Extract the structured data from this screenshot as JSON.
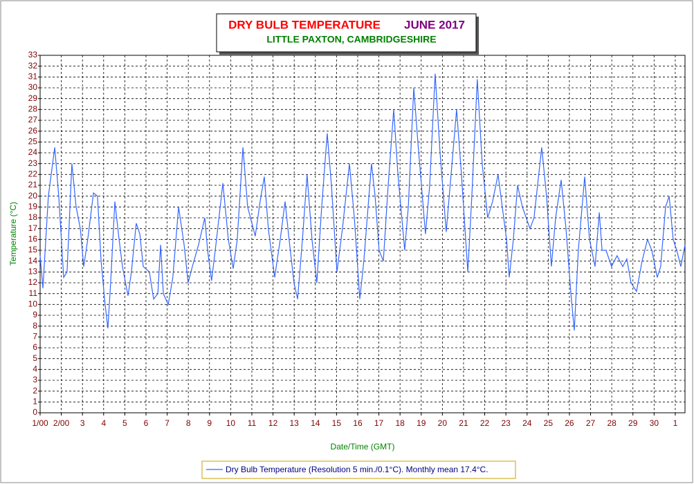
{
  "chart_data": {
    "type": "line",
    "title": "DRY BULB TEMPERATURE",
    "title_period": "JUNE 2017",
    "subtitle": "LITTLE PAXTON, CAMBRIDGESHIRE",
    "y_label": "Temperature (°C)",
    "x_label": "Date/Time (GMT)",
    "grid": true,
    "xlim": [
      0,
      30.46
    ],
    "ylim": [
      0,
      33
    ],
    "yticks": [
      0,
      1,
      2,
      3,
      4,
      5,
      6,
      7,
      8,
      9,
      10,
      11,
      12,
      13,
      14,
      15,
      16,
      17,
      18,
      19,
      20,
      21,
      22,
      23,
      24,
      25,
      26,
      27,
      28,
      29,
      30,
      31,
      32,
      33
    ],
    "xticks": [
      {
        "value": 0,
        "label": "1/00"
      },
      {
        "value": 1,
        "label": "2/00"
      },
      {
        "value": 2,
        "label": "3"
      },
      {
        "value": 3,
        "label": "4"
      },
      {
        "value": 4,
        "label": "5"
      },
      {
        "value": 5,
        "label": "6"
      },
      {
        "value": 6,
        "label": "7"
      },
      {
        "value": 7,
        "label": "8"
      },
      {
        "value": 8,
        "label": "9"
      },
      {
        "value": 9,
        "label": "10"
      },
      {
        "value": 10,
        "label": "11"
      },
      {
        "value": 11,
        "label": "12"
      },
      {
        "value": 12,
        "label": "13"
      },
      {
        "value": 13,
        "label": "14"
      },
      {
        "value": 14,
        "label": "15"
      },
      {
        "value": 15,
        "label": "16"
      },
      {
        "value": 16,
        "label": "17"
      },
      {
        "value": 17,
        "label": "18"
      },
      {
        "value": 18,
        "label": "19"
      },
      {
        "value": 19,
        "label": "20"
      },
      {
        "value": 20,
        "label": "21"
      },
      {
        "value": 21,
        "label": "22"
      },
      {
        "value": 22,
        "label": "23"
      },
      {
        "value": 23,
        "label": "24"
      },
      {
        "value": 24,
        "label": "25"
      },
      {
        "value": 25,
        "label": "26"
      },
      {
        "value": 26,
        "label": "27"
      },
      {
        "value": 27,
        "label": "28"
      },
      {
        "value": 28,
        "label": "29"
      },
      {
        "value": 29,
        "label": "30"
      },
      {
        "value": 30,
        "label": "1"
      }
    ],
    "x": [
      0,
      0.13,
      0.39,
      0.69,
      0.88,
      1.11,
      1.27,
      1.5,
      1.7,
      1.9,
      2.06,
      2.25,
      2.52,
      2.71,
      2.88,
      3.07,
      3.2,
      3.33,
      3.53,
      3.73,
      3.89,
      4.15,
      4.31,
      4.54,
      4.71,
      4.87,
      5.16,
      5.36,
      5.56,
      5.69,
      5.82,
      6.05,
      6.27,
      6.54,
      6.8,
      6.99,
      7.19,
      7.48,
      7.78,
      7.91,
      8.1,
      8.3,
      8.63,
      8.89,
      9.12,
      9.31,
      9.58,
      9.8,
      10.16,
      10.39,
      10.59,
      10.78,
      11.08,
      11.34,
      11.57,
      11.76,
      11.99,
      12.16,
      12.39,
      12.61,
      12.84,
      13.07,
      13.3,
      13.56,
      13.76,
      14.02,
      14.28,
      14.61,
      14.84,
      15.1,
      15.29,
      15.65,
      15.82,
      16.01,
      16.21,
      16.44,
      16.7,
      16.9,
      17.22,
      17.39,
      17.65,
      17.84,
      18.2,
      18.4,
      18.66,
      18.89,
      19.18,
      19.41,
      19.67,
      19.9,
      20.2,
      20.39,
      20.65,
      20.88,
      21.14,
      21.37,
      21.63,
      21.83,
      22.03,
      22.16,
      22.35,
      22.55,
      22.78,
      23.14,
      23.33,
      23.69,
      23.92,
      24.15,
      24.35,
      24.61,
      24.84,
      25.07,
      25.23,
      25.42,
      25.72,
      25.95,
      26.21,
      26.41,
      26.54,
      26.73,
      26.99,
      27.25,
      27.52,
      27.71,
      27.91,
      28.17,
      28.43,
      28.69,
      28.89,
      29.15,
      29.31,
      29.54,
      29.71,
      29.9,
      30.07,
      30.26,
      30.46
    ],
    "series": [
      {
        "name": "Dry Bulb Temperature (Resolution 5 min./0.1°C). Monthly mean 17.4°C.",
        "color": "#3366ff",
        "values": [
          14.5,
          11.5,
          20,
          24.5,
          20,
          12.5,
          13,
          23,
          19,
          17,
          13.5,
          16,
          20.3,
          20,
          14,
          10,
          7.8,
          12,
          19.5,
          16,
          13.5,
          10.8,
          13,
          17.5,
          16.5,
          13.5,
          13,
          10.5,
          11,
          15.5,
          11,
          10,
          12.5,
          19,
          15.5,
          12,
          13.5,
          15.5,
          18,
          15,
          12.2,
          15.5,
          21.2,
          16,
          13.3,
          16,
          24.5,
          19,
          16.3,
          19.5,
          21.8,
          17,
          12.5,
          16,
          19.5,
          16,
          12,
          10.5,
          16,
          22,
          16,
          12,
          19,
          25.8,
          21,
          13,
          17,
          23,
          18,
          10.5,
          14,
          23,
          20,
          15,
          14,
          21,
          28,
          22,
          15,
          19,
          30,
          25,
          16.5,
          21,
          31.3,
          24,
          16.7,
          22,
          28,
          22,
          13,
          20,
          30.8,
          23,
          18,
          19.5,
          22,
          19,
          16,
          12.5,
          16,
          21,
          19,
          17,
          18,
          24.5,
          20,
          13.5,
          18,
          21.5,
          17,
          11,
          7.6,
          15,
          21.8,
          16,
          13.5,
          18.5,
          15,
          15,
          13.5,
          14.5,
          13.5,
          14.2,
          12,
          11.2,
          14,
          16,
          15,
          12.5,
          13.5,
          19,
          20,
          16,
          15,
          13.5,
          15.5
        ]
      }
    ]
  }
}
